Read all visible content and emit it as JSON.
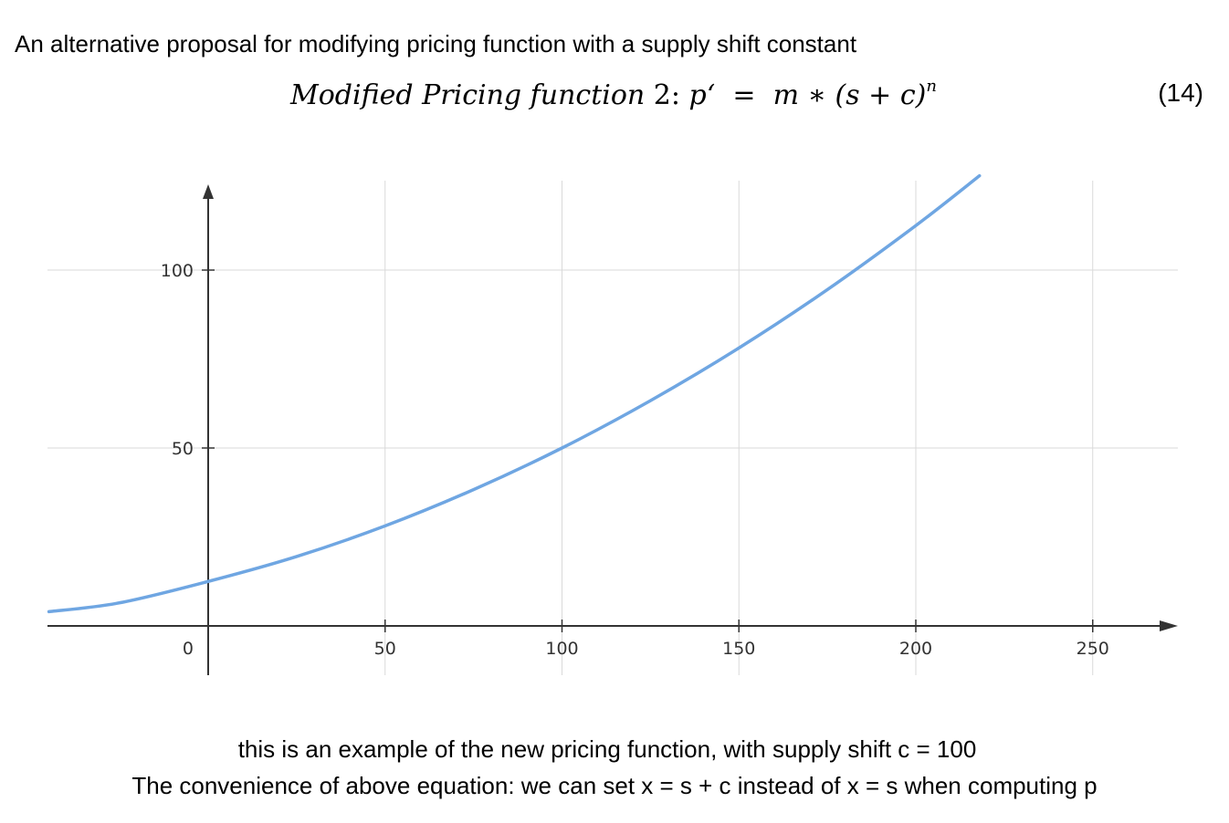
{
  "heading": "An alternative proposal for modifying pricing function with a supply shift constant",
  "equation": {
    "lhs": "Modified Pricing function",
    "number_label": "2",
    "colon": ":",
    "p_prime": "p‘",
    "equals": "=",
    "rhs_main": "m ∗ (s + c)",
    "exponent": "n",
    "tag": "(14)"
  },
  "chart_data": {
    "type": "line",
    "function": "y = m * (x + c)^n",
    "x_ticks": [
      50,
      100,
      150,
      200,
      250
    ],
    "y_ticks": [
      50,
      100
    ],
    "origin_label": "0",
    "xlim": [
      -45,
      270
    ],
    "ylim": [
      -13,
      125
    ],
    "grid": true,
    "series": [
      {
        "color": "#6fa6e2",
        "x": [
          -45,
          -25,
          0,
          25,
          50,
          75,
          100,
          125,
          150,
          175,
          200,
          218
        ],
        "y": [
          4.0,
          6.5,
          12.5,
          19.5,
          28.1,
          38.3,
          50.0,
          63.3,
          78.1,
          94.5,
          112.5,
          126.5
        ]
      }
    ],
    "colors": {
      "axis": "#333333",
      "grid": "#d9d9d9",
      "curve": "#6fa6e2"
    }
  },
  "captions": {
    "line1": "this is an example of the new pricing function, with supply shift c = 100",
    "line2": "The convenience of above equation: we can set x = s + c instead of x = s when computing p"
  }
}
